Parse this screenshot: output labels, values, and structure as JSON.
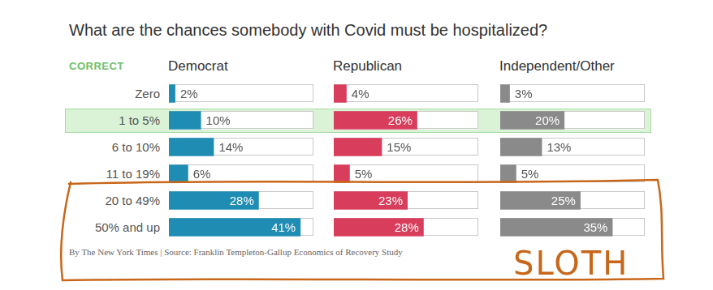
{
  "chart_data": {
    "type": "bar",
    "orientation": "horizontal",
    "title": "What are the chances somebody with Covid must be hospitalized?",
    "categories": [
      "Zero",
      "1 to 5%",
      "6 to 10%",
      "11 to 19%",
      "20 to 49%",
      "50% and up"
    ],
    "series": [
      {
        "name": "Democrat",
        "color": "#1f8db3",
        "values": [
          2,
          10,
          14,
          6,
          28,
          41
        ],
        "value_labels": [
          "2%",
          "10%",
          "14%",
          "6%",
          "28%",
          "41%"
        ]
      },
      {
        "name": "Republican",
        "color": "#d93d5c",
        "values": [
          4,
          26,
          15,
          5,
          23,
          28
        ],
        "value_labels": [
          "4%",
          "26%",
          "15%",
          "5%",
          "23%",
          "28%"
        ]
      },
      {
        "name": "Independent/Other",
        "color": "#8a8a8a",
        "values": [
          3,
          20,
          13,
          5,
          25,
          35
        ],
        "value_labels": [
          "3%",
          "20%",
          "13%",
          "5%",
          "25%",
          "35%"
        ]
      }
    ],
    "xlim": [
      0,
      45
    ],
    "tick_labels": false,
    "grid": false,
    "data_labels": true,
    "annotations": [
      {
        "text": "CORRECT",
        "category": "1 to 5%"
      },
      {
        "text": "SLOTH",
        "categories": [
          "20 to 49%",
          "50% and up"
        ]
      }
    ],
    "source": "By The New York Times | Source: Franklin Templeton-Gallup Economics of Recovery Study"
  }
}
